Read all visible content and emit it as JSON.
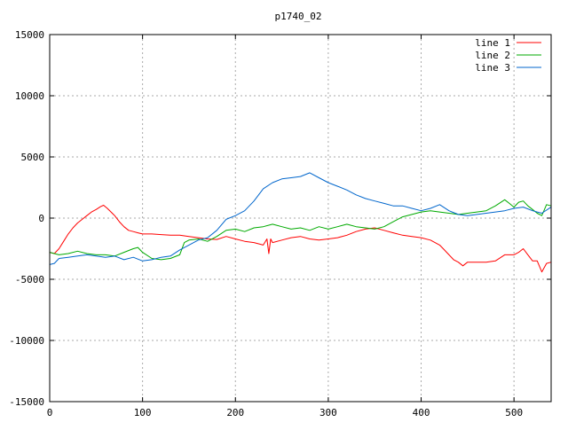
{
  "chart_data": {
    "type": "line",
    "title": "p1740_02",
    "xlabel": "",
    "ylabel": "",
    "xlim": [
      0,
      540
    ],
    "ylim": [
      -15000,
      15000
    ],
    "xticks": [
      0,
      100,
      200,
      300,
      400,
      500
    ],
    "yticks": [
      -15000,
      -10000,
      -5000,
      0,
      5000,
      10000,
      15000
    ],
    "grid": true,
    "legend_position": "top-right",
    "series": [
      {
        "name": "line 1",
        "color": "#ff0000",
        "points": [
          [
            0,
            -2800
          ],
          [
            5,
            -2900
          ],
          [
            10,
            -2500
          ],
          [
            15,
            -1900
          ],
          [
            20,
            -1300
          ],
          [
            25,
            -800
          ],
          [
            30,
            -400
          ],
          [
            35,
            -100
          ],
          [
            40,
            200
          ],
          [
            45,
            500
          ],
          [
            50,
            700
          ],
          [
            55,
            950
          ],
          [
            58,
            1050
          ],
          [
            62,
            800
          ],
          [
            66,
            500
          ],
          [
            70,
            200
          ],
          [
            75,
            -300
          ],
          [
            80,
            -700
          ],
          [
            85,
            -1000
          ],
          [
            90,
            -1100
          ],
          [
            95,
            -1200
          ],
          [
            100,
            -1300
          ],
          [
            110,
            -1300
          ],
          [
            120,
            -1350
          ],
          [
            130,
            -1400
          ],
          [
            140,
            -1400
          ],
          [
            150,
            -1500
          ],
          [
            160,
            -1600
          ],
          [
            170,
            -1700
          ],
          [
            180,
            -1750
          ],
          [
            190,
            -1500
          ],
          [
            200,
            -1700
          ],
          [
            210,
            -1900
          ],
          [
            220,
            -2000
          ],
          [
            230,
            -2200
          ],
          [
            234,
            -1700
          ],
          [
            236,
            -2900
          ],
          [
            238,
            -1700
          ],
          [
            240,
            -2000
          ],
          [
            250,
            -1800
          ],
          [
            260,
            -1600
          ],
          [
            270,
            -1500
          ],
          [
            280,
            -1700
          ],
          [
            290,
            -1800
          ],
          [
            300,
            -1700
          ],
          [
            310,
            -1600
          ],
          [
            320,
            -1400
          ],
          [
            330,
            -1100
          ],
          [
            340,
            -900
          ],
          [
            350,
            -800
          ],
          [
            360,
            -1000
          ],
          [
            370,
            -1200
          ],
          [
            380,
            -1400
          ],
          [
            390,
            -1500
          ],
          [
            400,
            -1600
          ],
          [
            410,
            -1800
          ],
          [
            420,
            -2200
          ],
          [
            425,
            -2600
          ],
          [
            430,
            -3000
          ],
          [
            435,
            -3400
          ],
          [
            440,
            -3600
          ],
          [
            445,
            -3900
          ],
          [
            450,
            -3600
          ],
          [
            460,
            -3600
          ],
          [
            470,
            -3600
          ],
          [
            480,
            -3500
          ],
          [
            490,
            -3000
          ],
          [
            500,
            -3000
          ],
          [
            505,
            -2800
          ],
          [
            510,
            -2500
          ],
          [
            515,
            -3000
          ],
          [
            520,
            -3500
          ],
          [
            525,
            -3500
          ],
          [
            530,
            -4400
          ],
          [
            535,
            -3700
          ],
          [
            540,
            -3600
          ]
        ]
      },
      {
        "name": "line 2",
        "color": "#00aa00",
        "points": [
          [
            0,
            -2800
          ],
          [
            10,
            -3000
          ],
          [
            20,
            -2900
          ],
          [
            30,
            -2700
          ],
          [
            40,
            -2900
          ],
          [
            50,
            -3000
          ],
          [
            60,
            -3000
          ],
          [
            70,
            -3100
          ],
          [
            80,
            -2800
          ],
          [
            90,
            -2500
          ],
          [
            95,
            -2400
          ],
          [
            100,
            -2800
          ],
          [
            110,
            -3300
          ],
          [
            120,
            -3400
          ],
          [
            130,
            -3300
          ],
          [
            140,
            -3000
          ],
          [
            145,
            -2000
          ],
          [
            150,
            -1800
          ],
          [
            160,
            -1700
          ],
          [
            170,
            -1900
          ],
          [
            180,
            -1500
          ],
          [
            190,
            -1000
          ],
          [
            200,
            -900
          ],
          [
            210,
            -1100
          ],
          [
            220,
            -800
          ],
          [
            230,
            -700
          ],
          [
            240,
            -500
          ],
          [
            250,
            -700
          ],
          [
            260,
            -900
          ],
          [
            270,
            -800
          ],
          [
            280,
            -1000
          ],
          [
            290,
            -700
          ],
          [
            300,
            -900
          ],
          [
            310,
            -700
          ],
          [
            320,
            -500
          ],
          [
            330,
            -700
          ],
          [
            340,
            -800
          ],
          [
            350,
            -900
          ],
          [
            360,
            -700
          ],
          [
            370,
            -300
          ],
          [
            380,
            100
          ],
          [
            390,
            300
          ],
          [
            400,
            500
          ],
          [
            410,
            600
          ],
          [
            420,
            500
          ],
          [
            430,
            400
          ],
          [
            440,
            300
          ],
          [
            450,
            400
          ],
          [
            460,
            500
          ],
          [
            470,
            600
          ],
          [
            480,
            1000
          ],
          [
            490,
            1500
          ],
          [
            495,
            1200
          ],
          [
            500,
            900
          ],
          [
            505,
            1300
          ],
          [
            510,
            1400
          ],
          [
            515,
            1000
          ],
          [
            520,
            700
          ],
          [
            525,
            400
          ],
          [
            530,
            200
          ],
          [
            535,
            1100
          ],
          [
            540,
            1000
          ]
        ]
      },
      {
        "name": "line 3",
        "color": "#0066cc",
        "points": [
          [
            0,
            -3800
          ],
          [
            5,
            -3700
          ],
          [
            10,
            -3300
          ],
          [
            20,
            -3200
          ],
          [
            30,
            -3100
          ],
          [
            40,
            -3000
          ],
          [
            50,
            -3100
          ],
          [
            60,
            -3200
          ],
          [
            70,
            -3100
          ],
          [
            80,
            -3400
          ],
          [
            90,
            -3200
          ],
          [
            100,
            -3500
          ],
          [
            110,
            -3400
          ],
          [
            120,
            -3200
          ],
          [
            130,
            -3100
          ],
          [
            140,
            -2600
          ],
          [
            150,
            -2200
          ],
          [
            160,
            -1800
          ],
          [
            170,
            -1600
          ],
          [
            180,
            -1000
          ],
          [
            190,
            -100
          ],
          [
            200,
            200
          ],
          [
            210,
            600
          ],
          [
            220,
            1400
          ],
          [
            230,
            2400
          ],
          [
            240,
            2900
          ],
          [
            250,
            3200
          ],
          [
            260,
            3300
          ],
          [
            270,
            3400
          ],
          [
            280,
            3700
          ],
          [
            290,
            3300
          ],
          [
            300,
            2900
          ],
          [
            310,
            2600
          ],
          [
            320,
            2300
          ],
          [
            330,
            1900
          ],
          [
            340,
            1600
          ],
          [
            350,
            1400
          ],
          [
            360,
            1200
          ],
          [
            370,
            1000
          ],
          [
            380,
            1000
          ],
          [
            390,
            800
          ],
          [
            400,
            600
          ],
          [
            410,
            800
          ],
          [
            420,
            1100
          ],
          [
            430,
            600
          ],
          [
            440,
            300
          ],
          [
            450,
            200
          ],
          [
            460,
            300
          ],
          [
            470,
            400
          ],
          [
            480,
            500
          ],
          [
            490,
            600
          ],
          [
            500,
            800
          ],
          [
            510,
            900
          ],
          [
            520,
            600
          ],
          [
            530,
            400
          ],
          [
            540,
            900
          ]
        ]
      }
    ]
  }
}
